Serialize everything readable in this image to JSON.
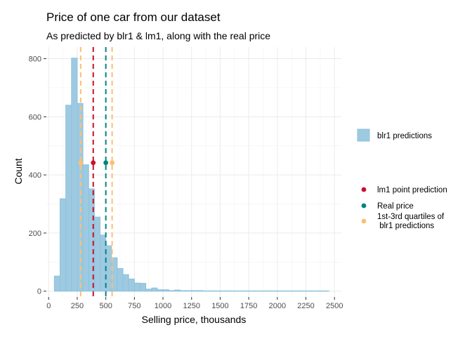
{
  "chart_data": {
    "type": "bar",
    "title": "Price of one car from our dataset",
    "subtitle": "As predicted by blr1 & lm1, along with the real price",
    "xlabel": "Selling price, thousands",
    "ylabel": "Count",
    "xlim": [
      -20,
      2560
    ],
    "ylim": [
      -20,
      840
    ],
    "xticks": [
      0,
      250,
      500,
      750,
      1000,
      1250,
      1500,
      1750,
      2000,
      2250,
      2500
    ],
    "yticks": [
      0,
      200,
      400,
      600,
      800
    ],
    "grid": true,
    "legend_position": "right",
    "histogram": {
      "series_name": "blr1 predictions",
      "color": "#9ecae1",
      "bin_width": 50,
      "bins_start": [
        50,
        100,
        150,
        200,
        250,
        300,
        350,
        400,
        450,
        500,
        550,
        600,
        650,
        700,
        750,
        800,
        850,
        900,
        950,
        1000,
        1050,
        1100,
        1150,
        1200,
        1250,
        1300,
        1350,
        1400,
        1450,
        1500,
        1550,
        1600,
        1650,
        1700,
        1750,
        1800,
        1850,
        1900,
        1950,
        2000,
        2050,
        2100,
        2150,
        2200,
        2250,
        2300,
        2350,
        2400
      ],
      "counts": [
        52,
        318,
        640,
        802,
        646,
        435,
        352,
        255,
        193,
        156,
        115,
        78,
        57,
        42,
        28,
        27,
        7,
        11,
        5,
        5,
        2,
        4,
        2,
        2,
        2,
        2,
        1,
        1,
        1,
        1,
        1,
        1,
        1,
        1,
        1,
        1,
        1,
        1,
        1,
        1,
        1,
        1,
        1,
        1,
        1,
        1,
        1,
        1
      ]
    },
    "vlines": [
      {
        "name": "1st-3rd quartiles of blr1 predictions",
        "x": 280,
        "color": "#fdbf6f"
      },
      {
        "name": "lm1 point prediction",
        "x": 390,
        "color": "#c8102e"
      },
      {
        "name": "Real price",
        "x": 500,
        "color": "#01847f"
      },
      {
        "name": "1st-3rd quartiles of blr1 predictions",
        "x": 555,
        "color": "#fdbf6f"
      }
    ],
    "points": [
      {
        "name": "1st-3rd quartiles of blr1 predictions",
        "x": 280,
        "y": 442,
        "color": "#fdbf6f"
      },
      {
        "name": "lm1 point prediction",
        "x": 390,
        "y": 442,
        "color": "#c8102e"
      },
      {
        "name": "Real price",
        "x": 500,
        "y": 442,
        "color": "#01847f"
      },
      {
        "name": "1st-3rd quartiles of blr1 predictions",
        "x": 555,
        "y": 442,
        "color": "#fdbf6f"
      }
    ],
    "legend_fill": [
      {
        "label": "blr1 predictions",
        "color": "#9ecae1"
      }
    ],
    "legend_points": [
      {
        "label": "lm1 point prediction",
        "color": "#c8102e"
      },
      {
        "label": "Real price",
        "color": "#01847f"
      },
      {
        "label_lines": [
          "1st-3rd quartiles of",
          " blr1 predictions"
        ],
        "color": "#fdbf6f"
      }
    ]
  }
}
